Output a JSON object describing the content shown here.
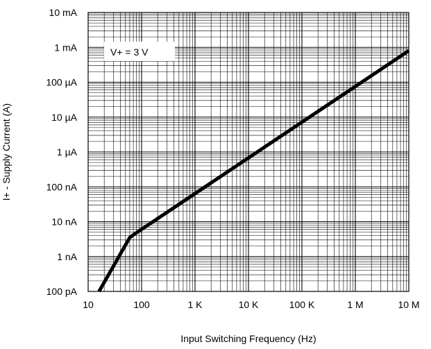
{
  "chart_data": {
    "type": "line",
    "title": "",
    "xlabel": "Input Switching Frequency (Hz)",
    "ylabel": "I+ - Supply Current (A)",
    "x_scale": "log",
    "y_scale": "log",
    "xlim": [
      10,
      10000000
    ],
    "ylim": [
      1e-10,
      0.01
    ],
    "x_ticks": [
      10,
      100,
      1000,
      10000,
      100000,
      1000000,
      10000000
    ],
    "x_tick_labels": [
      "10",
      "100",
      "1 K",
      "10 K",
      "100 K",
      "1 M",
      "10 M"
    ],
    "y_ticks": [
      1e-10,
      1e-09,
      1e-08,
      1e-07,
      1e-06,
      1e-05,
      0.0001,
      0.001,
      0.01
    ],
    "y_tick_labels": [
      "100 pA",
      "1 nA",
      "10 nA",
      "100 nA",
      "1 µA",
      "10 µA",
      "100 µA",
      "1 mA",
      "10 mA"
    ],
    "grid": true,
    "grid_minor": true,
    "annotation": "V+ = 3 V",
    "line_color": "#000000",
    "series": [
      {
        "x": [
          16,
          60,
          75,
          10000000
        ],
        "y": [
          1e-10,
          3.5e-09,
          4.5e-09,
          0.0008
        ]
      }
    ]
  }
}
